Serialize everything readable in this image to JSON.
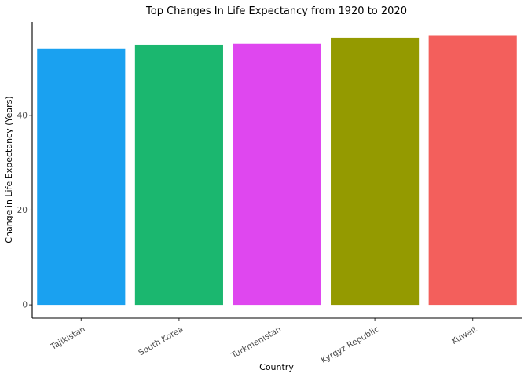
{
  "chart_data": {
    "type": "bar",
    "title": "Top Changes In Life Expectancy from 1920 to 2020",
    "xlabel": "Country",
    "ylabel": "Change in Life Expectancy (Years)",
    "categories": [
      "Tajikistan",
      "South Korea",
      "Turkmenistan",
      "Kyrgyz Republic",
      "Kuwait"
    ],
    "values": [
      54.1,
      54.9,
      55.1,
      56.4,
      56.8
    ],
    "colors": [
      "#1aa1f0",
      "#1bb76f",
      "#df47ef",
      "#949a00",
      "#f35f5c"
    ],
    "yticks": [
      0,
      20,
      40
    ],
    "ylim": [
      -2.8,
      59.7
    ],
    "grid": false,
    "legend": "none",
    "x_tick_rotation": 30
  }
}
